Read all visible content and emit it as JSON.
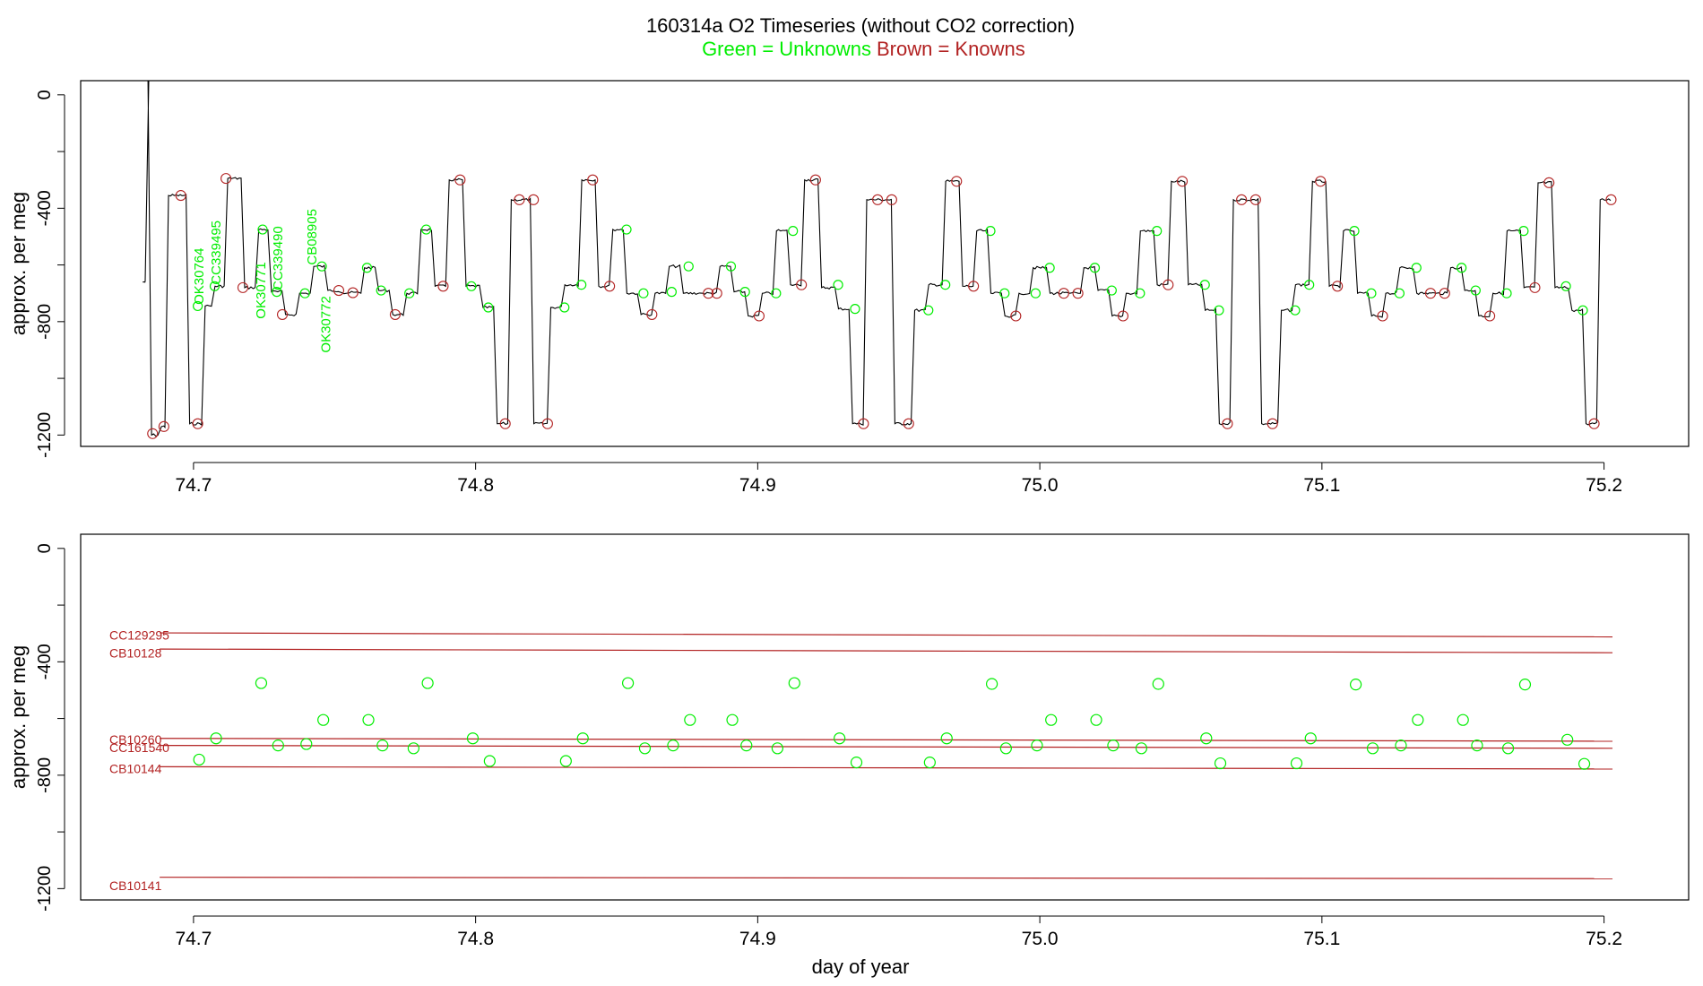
{
  "title": {
    "main": "160314a   O2 Timeseries (without CO2 correction)",
    "legend_unknowns": "Green = Unknowns",
    "legend_knowns": "Brown = Knowns"
  },
  "colors": {
    "unknown": "#00ee00",
    "known": "#b22222",
    "trace": "#000000",
    "axis": "#000000"
  },
  "chart_data": [
    {
      "type": "line",
      "panel": "top",
      "xlabel": "",
      "ylabel": "approx. per meg",
      "xlim": [
        74.66,
        75.23
      ],
      "ylim": [
        -1240,
        50
      ],
      "xticks": [
        74.7,
        74.8,
        74.9,
        75.0,
        75.1,
        75.2
      ],
      "xtick_labels": [
        "74.7",
        "74.8",
        "74.9",
        "75.0",
        "75.1",
        "75.2"
      ],
      "yticks": [
        0,
        -400,
        -800,
        -1200
      ],
      "ytick_labels": [
        "0",
        "-400",
        "-800",
        "-1200"
      ],
      "levels": [
        [
          74.682,
          74.6835,
          -660
        ],
        [
          74.6835,
          74.6845,
          55
        ],
        [
          74.6845,
          74.688,
          -1200
        ],
        [
          74.688,
          74.6905,
          -1170
        ],
        [
          74.6905,
          74.698,
          -355
        ],
        [
          74.698,
          74.7035,
          -1160
        ],
        [
          74.7035,
          74.707,
          -745
        ],
        [
          74.707,
          74.7115,
          -675
        ],
        [
          74.7115,
          74.7175,
          -295
        ],
        [
          74.7175,
          74.7225,
          -680
        ],
        [
          74.7225,
          74.727,
          -475
        ],
        [
          74.727,
          74.732,
          -695
        ],
        [
          74.732,
          74.737,
          -775
        ],
        [
          74.737,
          74.742,
          -700
        ],
        [
          74.742,
          74.747,
          -605
        ],
        [
          74.747,
          74.752,
          -690
        ],
        [
          74.752,
          74.76,
          -698
        ],
        [
          74.76,
          74.765,
          -610
        ],
        [
          74.765,
          74.77,
          -690
        ],
        [
          74.77,
          74.775,
          -775
        ],
        [
          74.775,
          74.78,
          -700
        ],
        [
          74.78,
          74.785,
          -475
        ],
        [
          74.785,
          74.79,
          -675
        ],
        [
          74.79,
          74.796,
          -300
        ],
        [
          74.796,
          74.802,
          -675
        ],
        [
          74.802,
          74.807,
          -750
        ],
        [
          74.807,
          74.812,
          -1160
        ],
        [
          74.812,
          74.82,
          -370
        ],
        [
          74.82,
          74.826,
          -1160
        ],
        [
          74.826,
          74.831,
          -750
        ],
        [
          74.831,
          74.837,
          -670
        ],
        [
          74.837,
          74.843,
          -300
        ],
        [
          74.843,
          74.848,
          -675
        ],
        [
          74.848,
          74.853,
          -475
        ],
        [
          74.853,
          74.858,
          -700
        ],
        [
          74.858,
          74.863,
          -775
        ],
        [
          74.863,
          74.868,
          -700
        ],
        [
          74.868,
          74.873,
          -605
        ],
        [
          74.873,
          74.88,
          -700
        ],
        [
          74.88,
          74.886,
          -700
        ],
        [
          74.886,
          74.891,
          -605
        ],
        [
          74.891,
          74.896,
          -695
        ],
        [
          74.896,
          74.901,
          -780
        ],
        [
          74.901,
          74.906,
          -700
        ],
        [
          74.906,
          74.911,
          -480
        ],
        [
          74.911,
          74.916,
          -670
        ],
        [
          74.916,
          74.922,
          -300
        ],
        [
          74.922,
          74.928,
          -680
        ],
        [
          74.928,
          74.933,
          -755
        ],
        [
          74.933,
          74.938,
          -1160
        ],
        [
          74.938,
          74.948,
          -370
        ],
        [
          74.948,
          74.955,
          -1160
        ],
        [
          74.955,
          74.96,
          -760
        ],
        [
          74.96,
          74.966,
          -670
        ],
        [
          74.966,
          74.972,
          -305
        ],
        [
          74.972,
          74.977,
          -675
        ],
        [
          74.977,
          74.982,
          -480
        ],
        [
          74.982,
          74.987,
          -700
        ],
        [
          74.987,
          74.992,
          -780
        ],
        [
          74.992,
          74.997,
          -700
        ],
        [
          74.997,
          75.003,
          -610
        ],
        [
          75.003,
          75.01,
          -700
        ],
        [
          75.01,
          75.015,
          -700
        ],
        [
          75.015,
          75.02,
          -610
        ],
        [
          75.02,
          75.025,
          -690
        ],
        [
          75.025,
          75.03,
          -780
        ],
        [
          75.03,
          75.035,
          -700
        ],
        [
          75.035,
          75.041,
          -480
        ],
        [
          75.041,
          75.046,
          -670
        ],
        [
          75.046,
          75.052,
          -305
        ],
        [
          75.052,
          75.058,
          -670
        ],
        [
          75.058,
          75.063,
          -760
        ],
        [
          75.063,
          75.068,
          -1160
        ],
        [
          75.068,
          75.078,
          -370
        ],
        [
          75.078,
          75.085,
          -1160
        ],
        [
          75.085,
          75.09,
          -760
        ],
        [
          75.09,
          75.096,
          -670
        ],
        [
          75.096,
          75.102,
          -305
        ],
        [
          75.102,
          75.107,
          -675
        ],
        [
          75.107,
          75.112,
          -480
        ],
        [
          75.112,
          75.117,
          -700
        ],
        [
          75.117,
          75.122,
          -780
        ],
        [
          75.122,
          75.127,
          -700
        ],
        [
          75.127,
          75.133,
          -610
        ],
        [
          75.133,
          75.14,
          -700
        ],
        [
          75.14,
          75.145,
          -700
        ],
        [
          75.145,
          75.15,
          -610
        ],
        [
          75.15,
          75.155,
          -690
        ],
        [
          75.155,
          75.16,
          -780
        ],
        [
          75.16,
          75.165,
          -700
        ],
        [
          75.165,
          75.171,
          -480
        ],
        [
          75.171,
          75.176,
          -680
        ],
        [
          75.176,
          75.182,
          -310
        ],
        [
          75.182,
          75.188,
          -680
        ],
        [
          75.188,
          75.193,
          -760
        ],
        [
          75.193,
          75.198,
          -1160
        ],
        [
          75.198,
          75.203,
          -370
        ]
      ],
      "unknown_points": [
        [
          74.7015,
          -745
        ],
        [
          74.7075,
          -675
        ],
        [
          74.7245,
          -475
        ],
        [
          74.7295,
          -695
        ],
        [
          74.7395,
          -700
        ],
        [
          74.7455,
          -605
        ],
        [
          74.7615,
          -610
        ],
        [
          74.7665,
          -690
        ],
        [
          74.7765,
          -700
        ],
        [
          74.7825,
          -475
        ],
        [
          74.7985,
          -675
        ],
        [
          74.8045,
          -750
        ],
        [
          74.8315,
          -750
        ],
        [
          74.8375,
          -670
        ],
        [
          74.8535,
          -475
        ],
        [
          74.8595,
          -700
        ],
        [
          74.8695,
          -695
        ],
        [
          74.8755,
          -605
        ],
        [
          74.8905,
          -605
        ],
        [
          74.8955,
          -695
        ],
        [
          74.9065,
          -700
        ],
        [
          74.9125,
          -480
        ],
        [
          74.9285,
          -670
        ],
        [
          74.9345,
          -755
        ],
        [
          74.9605,
          -760
        ],
        [
          74.9665,
          -670
        ],
        [
          74.9825,
          -480
        ],
        [
          74.9875,
          -700
        ],
        [
          74.9985,
          -700
        ],
        [
          75.0035,
          -610
        ],
        [
          75.0195,
          -610
        ],
        [
          75.0255,
          -690
        ],
        [
          75.0355,
          -700
        ],
        [
          75.0415,
          -480
        ],
        [
          75.0585,
          -670
        ],
        [
          75.0635,
          -760
        ],
        [
          75.0905,
          -760
        ],
        [
          75.0955,
          -670
        ],
        [
          75.1115,
          -480
        ],
        [
          75.1175,
          -700
        ],
        [
          75.1275,
          -700
        ],
        [
          75.1335,
          -610
        ],
        [
          75.1495,
          -610
        ],
        [
          75.1545,
          -690
        ],
        [
          75.1655,
          -700
        ],
        [
          75.1715,
          -480
        ],
        [
          75.1865,
          -675
        ],
        [
          75.1925,
          -760
        ]
      ],
      "known_points": [
        [
          74.6855,
          -1195
        ],
        [
          74.6895,
          -1170
        ],
        [
          74.6955,
          -355
        ],
        [
          74.7015,
          -1160
        ],
        [
          74.7115,
          -295
        ],
        [
          74.7175,
          -680
        ],
        [
          74.7315,
          -775
        ],
        [
          74.7515,
          -690
        ],
        [
          74.7565,
          -698
        ],
        [
          74.7715,
          -775
        ],
        [
          74.7885,
          -675
        ],
        [
          74.7945,
          -300
        ],
        [
          74.8105,
          -1160
        ],
        [
          74.8155,
          -370
        ],
        [
          74.8205,
          -370
        ],
        [
          74.8255,
          -1160
        ],
        [
          74.8415,
          -300
        ],
        [
          74.8475,
          -675
        ],
        [
          74.8625,
          -775
        ],
        [
          74.8825,
          -700
        ],
        [
          74.8855,
          -700
        ],
        [
          74.9005,
          -780
        ],
        [
          74.9155,
          -670
        ],
        [
          74.9205,
          -300
        ],
        [
          74.9375,
          -1160
        ],
        [
          74.9425,
          -370
        ],
        [
          74.9475,
          -370
        ],
        [
          74.9535,
          -1160
        ],
        [
          74.9705,
          -305
        ],
        [
          74.9765,
          -675
        ],
        [
          74.9915,
          -780
        ],
        [
          75.0085,
          -700
        ],
        [
          75.0135,
          -700
        ],
        [
          75.0295,
          -780
        ],
        [
          75.0455,
          -670
        ],
        [
          75.0505,
          -305
        ],
        [
          75.0665,
          -1160
        ],
        [
          75.0715,
          -370
        ],
        [
          75.0765,
          -370
        ],
        [
          75.0825,
          -1160
        ],
        [
          75.0995,
          -305
        ],
        [
          75.1055,
          -675
        ],
        [
          75.1215,
          -780
        ],
        [
          75.1385,
          -700
        ],
        [
          75.1435,
          -700
        ],
        [
          75.1595,
          -780
        ],
        [
          75.1755,
          -680
        ],
        [
          75.1805,
          -310
        ],
        [
          75.1965,
          -1160
        ],
        [
          75.2025,
          -370
        ]
      ],
      "annotations": [
        {
          "text": "OK30764",
          "x": 74.7035,
          "y": -740
        },
        {
          "text": "CC339495",
          "x": 74.7095,
          "y": -670
        },
        {
          "text": "OK30771",
          "x": 74.7255,
          "y": -790
        },
        {
          "text": "CC339490",
          "x": 74.7315,
          "y": -690
        },
        {
          "text": "CB08905",
          "x": 74.7435,
          "y": -600
        },
        {
          "text": "OK30772",
          "x": 74.7485,
          "y": -910
        }
      ]
    },
    {
      "type": "scatter",
      "panel": "bottom",
      "xlabel": "day of year",
      "ylabel": "approx. per meg",
      "xlim": [
        74.66,
        75.23
      ],
      "ylim": [
        -1240,
        50
      ],
      "xticks": [
        74.7,
        74.8,
        74.9,
        75.0,
        75.1,
        75.2
      ],
      "xtick_labels": [
        "74.7",
        "74.8",
        "74.9",
        "75.0",
        "75.1",
        "75.2"
      ],
      "yticks": [
        0,
        -400,
        -800,
        -1200
      ],
      "ytick_labels": [
        "0",
        "-400",
        "-800",
        "-1200"
      ],
      "reference_lines": [
        {
          "name": "CC129295",
          "y_start": -298,
          "y_end": -312,
          "label_y": -322
        },
        {
          "name": "CB10128",
          "y_start": -355,
          "y_end": -368,
          "label_y": -385
        },
        {
          "name": "CB10260",
          "y_start": -670,
          "y_end": -680,
          "label_y": -690
        },
        {
          "name": "CC161540",
          "y_start": -695,
          "y_end": -705,
          "label_y": -718
        },
        {
          "name": "CB10144",
          "y_start": -770,
          "y_end": -778,
          "label_y": -792
        },
        {
          "name": "CB10141",
          "y_start": -1160,
          "y_end": -1165,
          "label_y": -1205
        }
      ],
      "line_x_range": [
        74.688,
        75.203
      ],
      "unknown_points": [
        [
          74.702,
          -745
        ],
        [
          74.708,
          -670
        ],
        [
          74.724,
          -475
        ],
        [
          74.73,
          -695
        ],
        [
          74.74,
          -690
        ],
        [
          74.746,
          -605
        ],
        [
          74.762,
          -605
        ],
        [
          74.767,
          -695
        ],
        [
          74.778,
          -705
        ],
        [
          74.783,
          -475
        ],
        [
          74.799,
          -670
        ],
        [
          74.805,
          -750
        ],
        [
          74.832,
          -750
        ],
        [
          74.838,
          -670
        ],
        [
          74.854,
          -475
        ],
        [
          74.86,
          -705
        ],
        [
          74.87,
          -695
        ],
        [
          74.876,
          -605
        ],
        [
          74.891,
          -605
        ],
        [
          74.896,
          -695
        ],
        [
          74.907,
          -705
        ],
        [
          74.913,
          -475
        ],
        [
          74.929,
          -670
        ],
        [
          74.935,
          -755
        ],
        [
          74.961,
          -755
        ],
        [
          74.967,
          -670
        ],
        [
          74.983,
          -478
        ],
        [
          74.988,
          -705
        ],
        [
          74.999,
          -695
        ],
        [
          75.004,
          -605
        ],
        [
          75.02,
          -605
        ],
        [
          75.026,
          -695
        ],
        [
          75.036,
          -705
        ],
        [
          75.042,
          -478
        ],
        [
          75.059,
          -670
        ],
        [
          75.064,
          -758
        ],
        [
          75.091,
          -758
        ],
        [
          75.096,
          -670
        ],
        [
          75.112,
          -480
        ],
        [
          75.118,
          -705
        ],
        [
          75.128,
          -695
        ],
        [
          75.134,
          -605
        ],
        [
          75.15,
          -605
        ],
        [
          75.155,
          -695
        ],
        [
          75.166,
          -705
        ],
        [
          75.172,
          -480
        ],
        [
          75.187,
          -675
        ],
        [
          75.193,
          -760
        ]
      ]
    }
  ]
}
